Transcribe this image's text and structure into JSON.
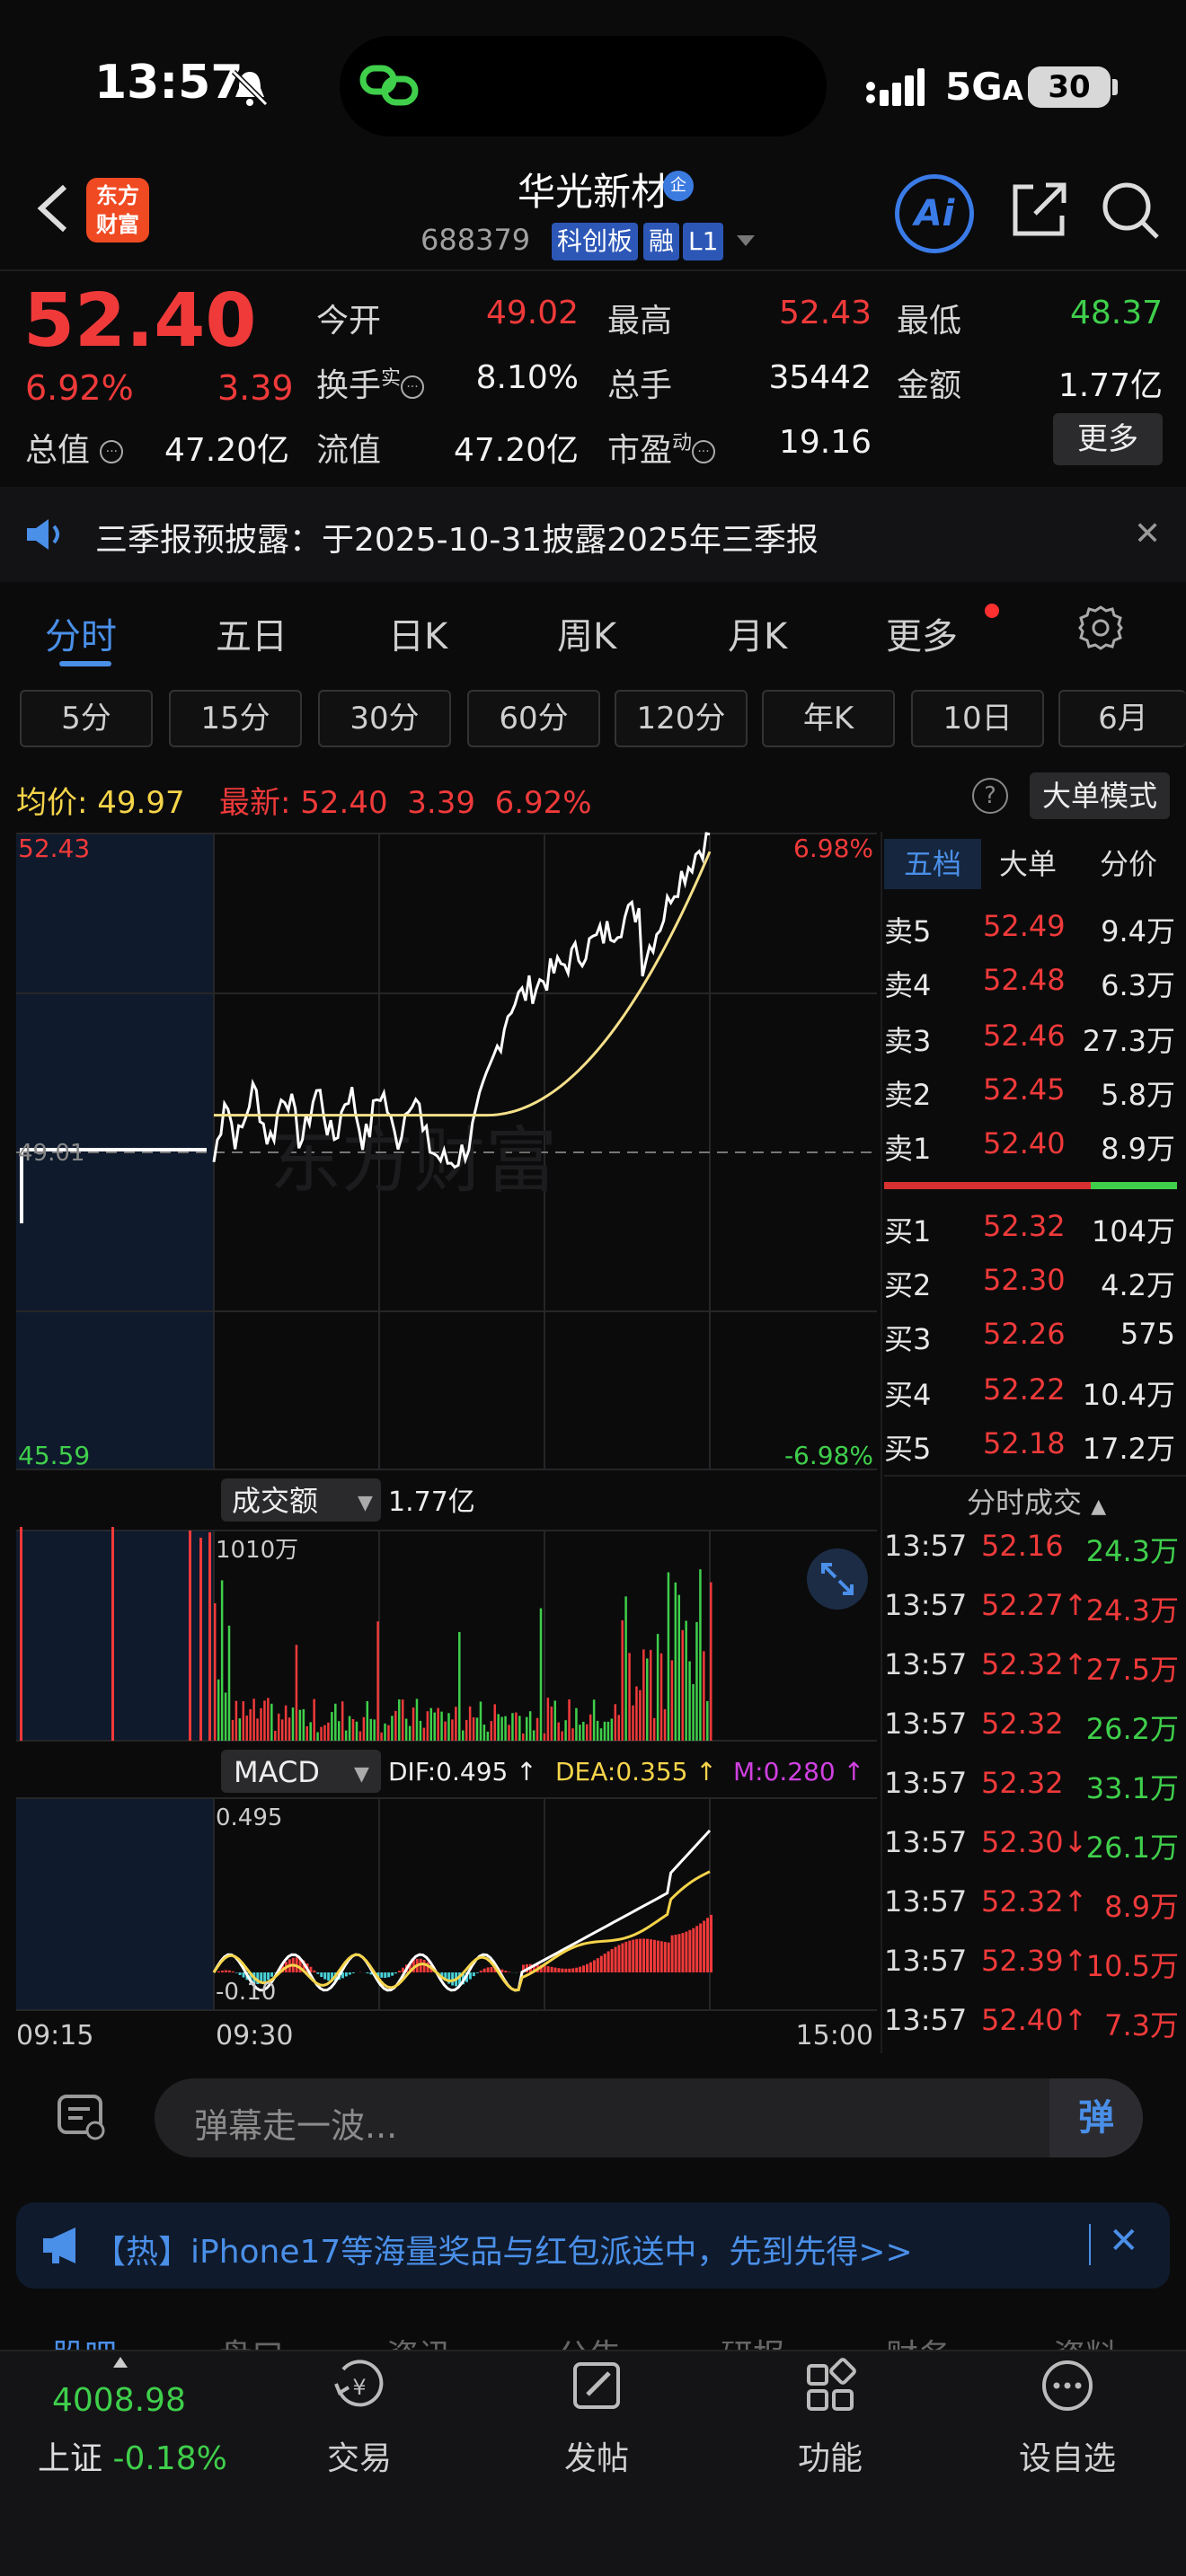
{
  "status_bar": {
    "time": "13:57",
    "network": "5G",
    "battery": "30"
  },
  "header": {
    "title": "华光新材",
    "badge": "企",
    "code": "688379",
    "tags": [
      "科创板",
      "融",
      "L1"
    ],
    "logo": "东方\n财富",
    "ai_label": "Ai"
  },
  "quote": {
    "price": "52.40",
    "change_pct": "6.92%",
    "change": "3.39",
    "rows": [
      [
        {
          "label": "今开",
          "value": "49.02",
          "color": "red"
        },
        {
          "label": "最高",
          "value": "52.43",
          "color": "red"
        },
        {
          "label": "最低",
          "value": "48.37",
          "color": "green"
        }
      ],
      [
        {
          "label": "换手",
          "sup": "实",
          "value": "8.10%",
          "color": "white"
        },
        {
          "label": "总手",
          "value": "35442",
          "color": "white"
        },
        {
          "label": "金额",
          "value": "1.77亿",
          "color": "white"
        }
      ]
    ],
    "row3": [
      {
        "label": "总值",
        "value": "47.20亿"
      },
      {
        "label": "流值",
        "value": "47.20亿"
      },
      {
        "label": "市盈",
        "sup": "动",
        "value": "19.16"
      }
    ],
    "more": "更多"
  },
  "notice": {
    "text": "三季报预披露：于2025-10-31披露2025年三季报"
  },
  "tabs": [
    "分时",
    "五日",
    "日K",
    "周K",
    "月K",
    "更多"
  ],
  "periods": [
    "5分",
    "15分",
    "30分",
    "60分",
    "120分",
    "年K",
    "10日",
    "6月"
  ],
  "avg_bar": {
    "avg_label": "均价:",
    "avg": "49.97",
    "latest_label": "最新:",
    "latest": "52.40",
    "chg": "3.39",
    "pct": "6.92%",
    "big_mode": "大单模式",
    "help": "?"
  },
  "chart": {
    "y_high": "52.43",
    "y_low": "45.59",
    "pct_high": "6.98%",
    "pct_low": "-6.98%",
    "prev_close": "49.01",
    "watermark": "东方财富",
    "vol_label": "成交额",
    "vol_total": "1.77亿",
    "vol_max": "1010万",
    "macd_label": "MACD",
    "dif": "DIF:0.495 ↑",
    "dea": "DEA:0.355 ↑",
    "m": "M:0.280 ↑",
    "macd_top": "0.495",
    "macd_bot": "-0.10",
    "x_start": "09:15",
    "x_open": "09:30",
    "x_end": "15:00",
    "colors": {
      "up": "#f03a3a",
      "down": "#3fcf4b",
      "price_line": "#ffffff",
      "avg_line": "#f5e08a"
    }
  },
  "orderbook": {
    "tabs": [
      "五档",
      "大单",
      "分价"
    ],
    "asks": [
      {
        "k": "卖5",
        "p": "52.49",
        "v": "9.4万"
      },
      {
        "k": "卖4",
        "p": "52.48",
        "v": "6.3万"
      },
      {
        "k": "卖3",
        "p": "52.46",
        "v": "27.3万"
      },
      {
        "k": "卖2",
        "p": "52.45",
        "v": "5.8万"
      },
      {
        "k": "卖1",
        "p": "52.40",
        "v": "8.9万"
      }
    ],
    "bids": [
      {
        "k": "买1",
        "p": "52.32",
        "v": "104万"
      },
      {
        "k": "买2",
        "p": "52.30",
        "v": "4.2万"
      },
      {
        "k": "买3",
        "p": "52.26",
        "v": "575"
      },
      {
        "k": "买4",
        "p": "52.22",
        "v": "10.4万"
      },
      {
        "k": "买5",
        "p": "52.18",
        "v": "17.2万"
      }
    ]
  },
  "ticks": {
    "title": "分时成交",
    "rows": [
      {
        "t": "13:57",
        "p": "52.16",
        "a": "",
        "v": "24.3万",
        "c": "green"
      },
      {
        "t": "13:57",
        "p": "52.27",
        "a": "↑",
        "v": "24.3万",
        "c": "red"
      },
      {
        "t": "13:57",
        "p": "52.32",
        "a": "↑",
        "v": "27.5万",
        "c": "red"
      },
      {
        "t": "13:57",
        "p": "52.32",
        "a": "",
        "v": "26.2万",
        "c": "green"
      },
      {
        "t": "13:57",
        "p": "52.32",
        "a": "",
        "v": "33.1万",
        "c": "green"
      },
      {
        "t": "13:57",
        "p": "52.30",
        "a": "↓",
        "v": "26.1万",
        "c": "green"
      },
      {
        "t": "13:57",
        "p": "52.32",
        "a": "↑",
        "v": "8.9万",
        "c": "red"
      },
      {
        "t": "13:57",
        "p": "52.39",
        "a": "↑",
        "v": "10.5万",
        "c": "red"
      },
      {
        "t": "13:57",
        "p": "52.40",
        "a": "↑",
        "v": "7.3万",
        "c": "red"
      }
    ]
  },
  "comment": {
    "placeholder": "弹幕走一波...",
    "danmu": "弹"
  },
  "promo": {
    "text": "【热】iPhone17等海量奖品与红包派送中，先到先得>>"
  },
  "bottom_tabs": [
    "股吧",
    "盘口",
    "资讯",
    "公告",
    "研报",
    "财务",
    "资料"
  ],
  "nav": {
    "index_value": "4008.98",
    "index_name": "上证",
    "index_pct": "-0.18%",
    "items": [
      "交易",
      "发帖",
      "功能",
      "设自选"
    ]
  }
}
